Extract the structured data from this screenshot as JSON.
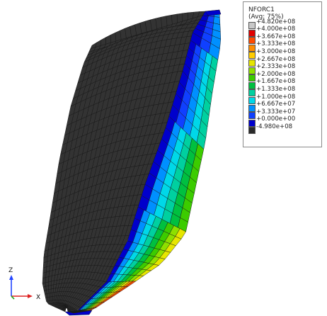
{
  "legend": {
    "variable": "NFORC1",
    "averaging": "(Avg: 75%)",
    "entries": [
      {
        "label": "+4.820e+08",
        "color": "#c8c8c8"
      },
      {
        "label": "+4.000e+08",
        "color": "#e00000"
      },
      {
        "label": "+3.667e+08",
        "color": "#ff4a00"
      },
      {
        "label": "+3.333e+08",
        "color": "#ff8c00"
      },
      {
        "label": "+3.000e+08",
        "color": "#ffcc00"
      },
      {
        "label": "+2.667e+08",
        "color": "#e6e600"
      },
      {
        "label": "+2.333e+08",
        "color": "#8ee000"
      },
      {
        "label": "+2.000e+08",
        "color": "#3ccc00"
      },
      {
        "label": "+1.667e+08",
        "color": "#00c040"
      },
      {
        "label": "+1.333e+08",
        "color": "#00d0a0"
      },
      {
        "label": "+1.000e+08",
        "color": "#00d8e8"
      },
      {
        "label": "+6.667e+07",
        "color": "#0090ff"
      },
      {
        "label": "+3.333e+07",
        "color": "#1040ff"
      },
      {
        "label": "+0.000e+00",
        "color": "#0000cc"
      },
      {
        "label": "-4.980e+08",
        "color": "#2a2a2a"
      }
    ]
  },
  "triad": {
    "z_label": "Z",
    "x_label": "X"
  },
  "colors": {
    "mesh_dark": "#333333",
    "mesh_line": "#151515",
    "background": "#ffffff"
  }
}
